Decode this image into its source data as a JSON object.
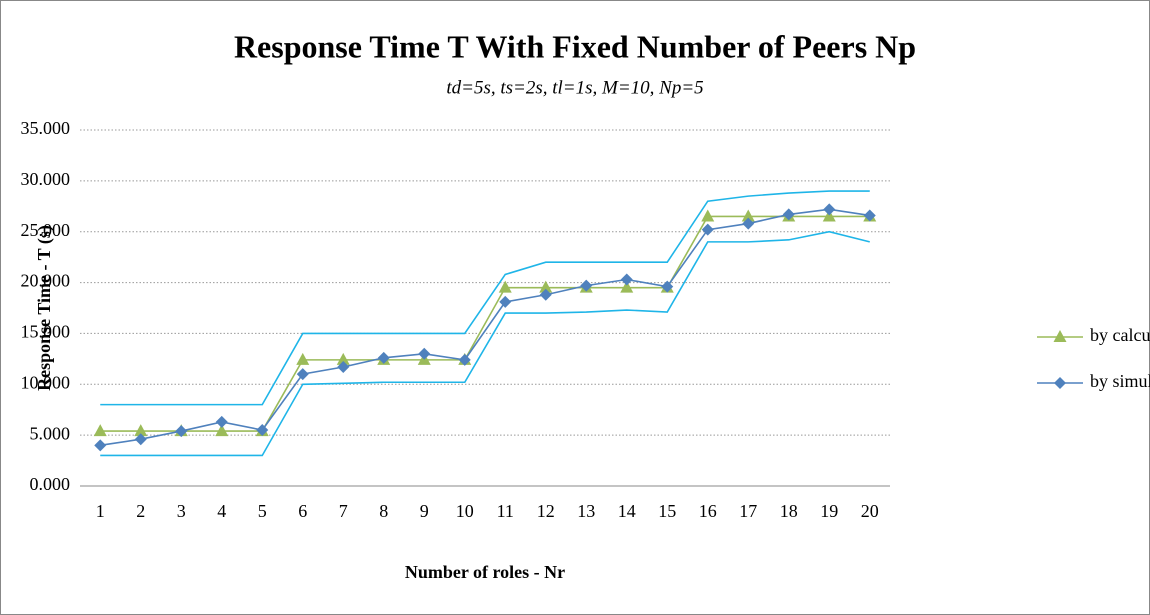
{
  "chart_data": {
    "type": "line",
    "title": "Response Time T With Fixed Number of Peers Np",
    "subtitle": "td=5s, ts=2s, tl=1s, M=10, Np=5",
    "x_label": "Number of roles - Nr",
    "y_label": "Response Time - T (s)",
    "categories": [
      "1",
      "2",
      "3",
      "4",
      "5",
      "6",
      "7",
      "8",
      "9",
      "10",
      "11",
      "12",
      "13",
      "14",
      "15",
      "16",
      "17",
      "18",
      "19",
      "20"
    ],
    "ylim": [
      0,
      35
    ],
    "yticks": [
      {
        "value": 0,
        "label": "0.000"
      },
      {
        "value": 5,
        "label": "5.000"
      },
      {
        "value": 10,
        "label": "10.000"
      },
      {
        "value": 15,
        "label": "15.000"
      },
      {
        "value": 20,
        "label": "20.000"
      },
      {
        "value": 25,
        "label": "25.000"
      },
      {
        "value": 30,
        "label": "30.000"
      },
      {
        "value": 35,
        "label": "35.000"
      }
    ],
    "grid": true,
    "legend": "right",
    "series": [
      {
        "name": "by calculation",
        "color": "#9bbb59",
        "marker": "triangle",
        "values": [
          5.4,
          5.4,
          5.4,
          5.4,
          5.4,
          12.4,
          12.4,
          12.4,
          12.4,
          12.4,
          19.5,
          19.5,
          19.5,
          19.5,
          19.5,
          26.5,
          26.5,
          26.5,
          26.5,
          26.5
        ]
      },
      {
        "name": "by simulation",
        "color": "#4f81bd",
        "marker": "diamond",
        "values": [
          4.0,
          4.6,
          5.4,
          6.3,
          5.5,
          11.0,
          11.7,
          12.6,
          13.0,
          12.4,
          18.1,
          18.8,
          19.7,
          20.3,
          19.6,
          25.2,
          25.8,
          26.7,
          27.2,
          26.6
        ]
      },
      {
        "color": "#1fb5e8",
        "marker": "none",
        "values": [
          8,
          8,
          8,
          8,
          8,
          15,
          15,
          15,
          15,
          15,
          20.8,
          22,
          22,
          22,
          22,
          28,
          28.5,
          28.8,
          29,
          29
        ]
      },
      {
        "color": "#1fb5e8",
        "marker": "none",
        "values": [
          3,
          3,
          3,
          3,
          3,
          10,
          10.1,
          10.2,
          10.2,
          10.2,
          17,
          17,
          17.1,
          17.3,
          17.1,
          24,
          24,
          24.2,
          25,
          24
        ]
      }
    ]
  }
}
